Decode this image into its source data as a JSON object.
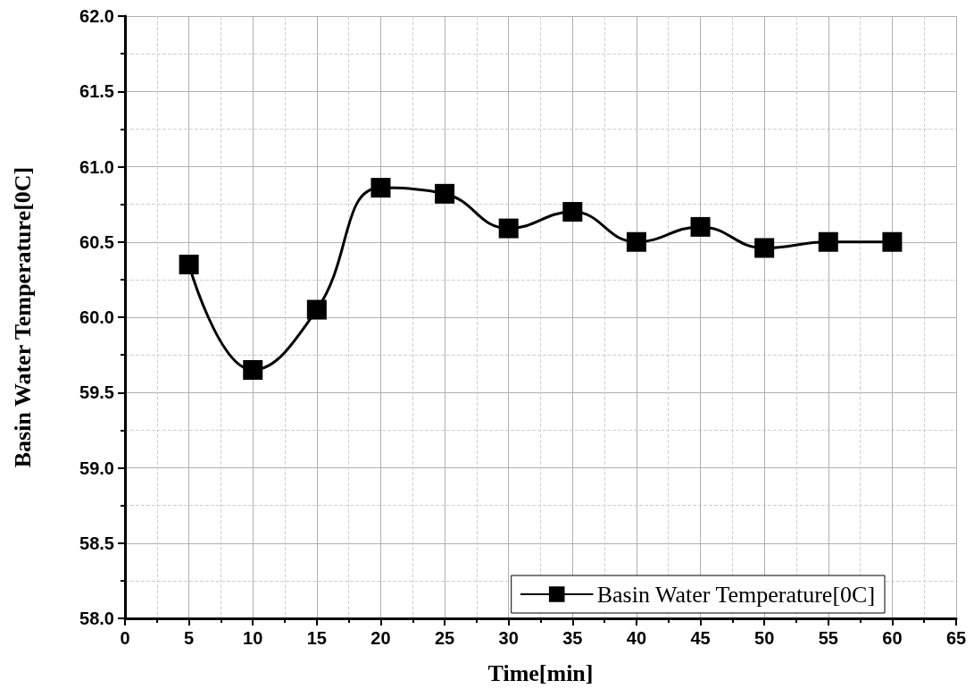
{
  "chart_data": {
    "type": "line",
    "xlabel": "Time[min]",
    "ylabel": "Basin Water Temperature[0C]",
    "x": [
      5,
      10,
      15,
      20,
      25,
      30,
      35,
      40,
      45,
      50,
      55,
      60
    ],
    "series": [
      {
        "name": "Basin Water Temperature[0C]",
        "color": "#000000",
        "values": [
          60.35,
          59.65,
          60.05,
          60.86,
          60.82,
          60.59,
          60.7,
          60.5,
          60.6,
          60.46,
          60.5,
          60.5
        ]
      }
    ],
    "xlim": [
      0,
      65
    ],
    "xticks": [
      0,
      5,
      10,
      15,
      20,
      25,
      30,
      35,
      40,
      45,
      50,
      55,
      60,
      65
    ],
    "ylim": [
      58,
      62
    ],
    "yticks": [
      {
        "value": 58,
        "label": "58.0"
      },
      {
        "value": 58.5,
        "label": "58.5"
      },
      {
        "value": 59,
        "label": "59.0"
      },
      {
        "value": 59.5,
        "label": "59.5"
      },
      {
        "value": 60,
        "label": "60.0"
      },
      {
        "value": 60.5,
        "label": "60.5"
      },
      {
        "value": 61,
        "label": "61.0"
      },
      {
        "value": 61.5,
        "label": "61.5"
      },
      {
        "value": 62,
        "label": "62.0"
      }
    ],
    "grid": true,
    "legend": "bottom right",
    "marker": "square",
    "line_style": "solid"
  }
}
